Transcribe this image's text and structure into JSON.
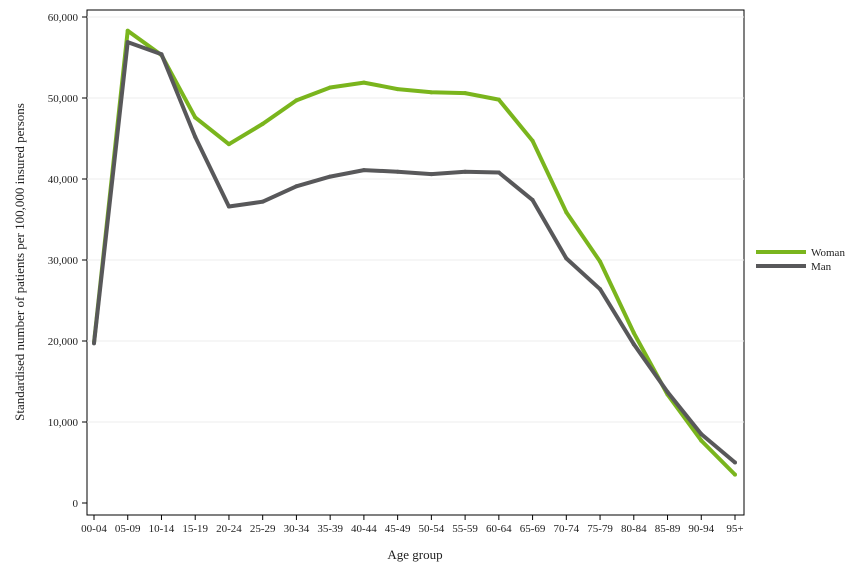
{
  "chart_data": {
    "type": "line",
    "categories": [
      "00-04",
      "05-09",
      "10-14",
      "15-19",
      "20-24",
      "25-29",
      "30-34",
      "35-39",
      "40-44",
      "45-49",
      "50-54",
      "55-59",
      "60-64",
      "65-69",
      "70-74",
      "75-79",
      "80-84",
      "85-89",
      "90-94",
      "95+"
    ],
    "series": [
      {
        "name": "Woman",
        "color": "#7ab51d",
        "values": [
          19800,
          58300,
          55300,
          47600,
          44300,
          46800,
          49700,
          51300,
          51900,
          51100,
          50700,
          50600,
          49800,
          44700,
          35900,
          29800,
          21000,
          13400,
          7700,
          3500
        ]
      },
      {
        "name": "Man",
        "color": "#58585a",
        "values": [
          19700,
          56900,
          55400,
          45200,
          36600,
          37200,
          39100,
          40300,
          41100,
          40900,
          40600,
          40900,
          40800,
          37400,
          30200,
          26400,
          19600,
          13700,
          8500,
          5000
        ]
      }
    ],
    "xlabel": "Age group",
    "ylabel": "Standardised number of patients per 100,000 insured persons",
    "ylim": [
      0,
      60000
    ],
    "yticks": [
      "0",
      "10,000",
      "20,000",
      "30,000",
      "40,000",
      "50,000",
      "60,000"
    ],
    "yticks_values": [
      0,
      10000,
      20000,
      30000,
      40000,
      50000,
      60000
    ],
    "grid": true,
    "legend_position": "right"
  }
}
